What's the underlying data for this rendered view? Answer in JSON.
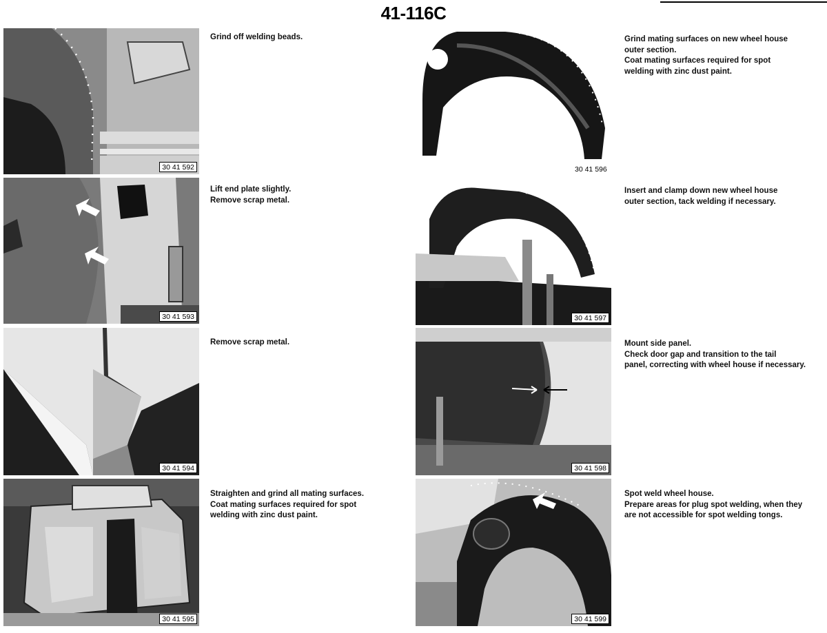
{
  "header": {
    "page_number": "41-116",
    "page_suffix": "C"
  },
  "left_column": [
    {
      "photo_number": "30 41 592",
      "caption": [
        "Grind off welding beads."
      ]
    },
    {
      "photo_number": "30 41 593",
      "caption": [
        "Lift end plate slightly.",
        "Remove scrap metal."
      ]
    },
    {
      "photo_number": "30 41 594",
      "caption": [
        "Remove scrap metal."
      ]
    },
    {
      "photo_number": "30 41 595",
      "caption": [
        "Straighten and grind all mating surfaces.",
        "Coat mating surfaces required for spot",
        "welding with zinc dust paint."
      ]
    }
  ],
  "right_column": [
    {
      "photo_number": "30 41 596",
      "caption": [
        "Grind mating surfaces on new wheel house",
        "outer section.",
        "Coat mating surfaces required for spot",
        "welding with zinc dust paint."
      ]
    },
    {
      "photo_number": "30 41 597",
      "caption": [
        "Insert and clamp down new wheel house",
        "outer section, tack welding if necessary."
      ]
    },
    {
      "photo_number": "30 41 598",
      "caption": [
        "Mount side panel.",
        "Check door gap and transition to the tail",
        "panel, correcting with wheel house if necessary."
      ]
    },
    {
      "photo_number": "30 41 599",
      "caption": [
        "Spot weld wheel house.",
        "Prepare areas for plug spot welding, when they",
        "are not accessible for spot welding tongs."
      ]
    }
  ]
}
